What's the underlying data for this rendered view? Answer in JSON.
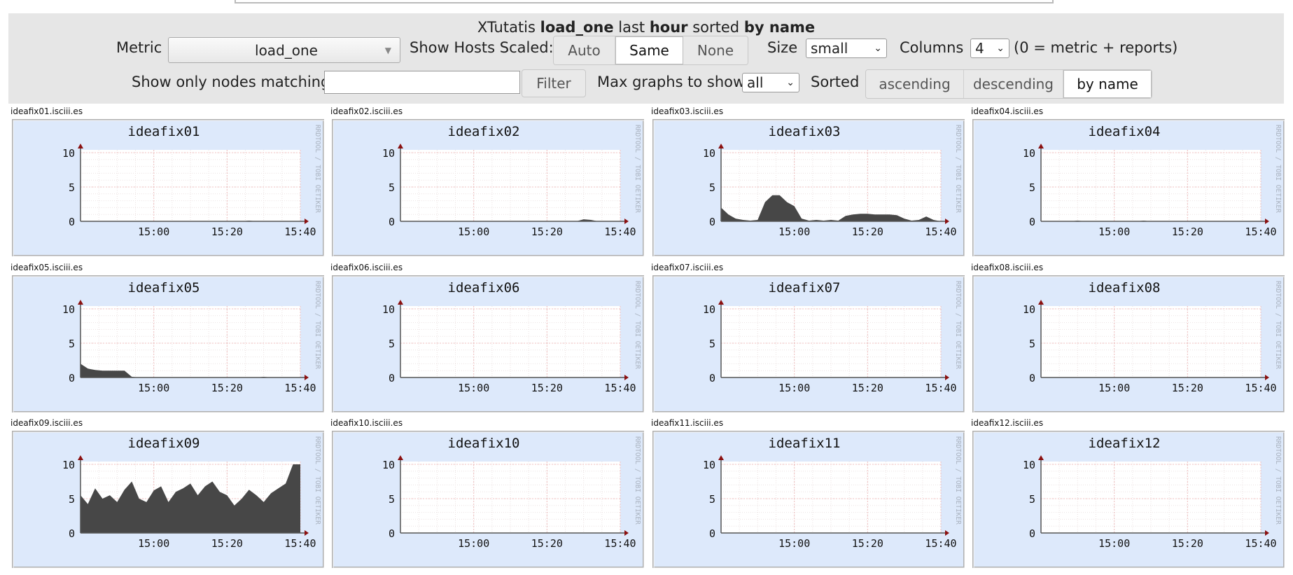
{
  "header": {
    "title_parts": {
      "cluster": "XTutatis",
      "metric": "load_one",
      "word_last": "last",
      "range": "hour",
      "word_sorted": "sorted",
      "sort": "by name"
    },
    "metric_label": "Metric",
    "metric_value": "load_one",
    "scaled_label": "Show Hosts Scaled:",
    "scaled_options": [
      "Auto",
      "Same",
      "None"
    ],
    "scaled_selected": "Same",
    "size_label": "Size",
    "size_value": "small",
    "columns_label": "Columns",
    "columns_value": "4",
    "columns_note": "(0 = metric + reports)",
    "filter_label": "Show only nodes matching",
    "filter_value": "",
    "filter_button": "Filter",
    "max_label": "Max graphs to show",
    "max_value": "all",
    "sorted_label": "Sorted",
    "sort_options": [
      "ascending",
      "descending",
      "by name"
    ],
    "sort_selected": "by name"
  },
  "graph_common": {
    "yticks": [
      "0",
      "5",
      "10"
    ],
    "xticks": [
      "15:00",
      "15:20",
      "15:40"
    ],
    "watermark": "RRDTOOL / TOBI OETIKER",
    "colors": {
      "bg": "#dde9fb",
      "plot": "#ffffff",
      "area": "#474747",
      "grid": "#f0c0c0",
      "axis": "#8b1010"
    }
  },
  "hosts": [
    {
      "fqdn": "ideafix01.isciii.es",
      "title": "ideafix01"
    },
    {
      "fqdn": "ideafix02.isciii.es",
      "title": "ideafix02"
    },
    {
      "fqdn": "ideafix03.isciii.es",
      "title": "ideafix03"
    },
    {
      "fqdn": "ideafix04.isciii.es",
      "title": "ideafix04"
    },
    {
      "fqdn": "ideafix05.isciii.es",
      "title": "ideafix05"
    },
    {
      "fqdn": "ideafix06.isciii.es",
      "title": "ideafix06"
    },
    {
      "fqdn": "ideafix07.isciii.es",
      "title": "ideafix07"
    },
    {
      "fqdn": "ideafix08.isciii.es",
      "title": "ideafix08"
    },
    {
      "fqdn": "ideafix09.isciii.es",
      "title": "ideafix09"
    },
    {
      "fqdn": "ideafix10.isciii.es",
      "title": "ideafix10"
    },
    {
      "fqdn": "ideafix11.isciii.es",
      "title": "ideafix11"
    },
    {
      "fqdn": "ideafix12.isciii.es",
      "title": "ideafix12"
    }
  ],
  "chart_data": {
    "type": "area",
    "xlabel": "",
    "ylabel": "",
    "ylim": [
      0,
      10
    ],
    "xlim_minutes": [
      -60,
      0
    ],
    "xticks": [
      "15:00",
      "15:20",
      "15:40"
    ],
    "yticks": [
      0,
      5,
      10
    ],
    "grid": true,
    "x_minutes": [
      0,
      2,
      4,
      6,
      8,
      10,
      12,
      14,
      16,
      18,
      20,
      22,
      24,
      26,
      28,
      30,
      32,
      34,
      36,
      38,
      40,
      42,
      44,
      46,
      48,
      50,
      52,
      54,
      56,
      58,
      60
    ],
    "series": [
      {
        "host": "ideafix01",
        "values": [
          0,
          0,
          0,
          0,
          0,
          0,
          0,
          0,
          0,
          0,
          0,
          0,
          0,
          0,
          0,
          0,
          0,
          0,
          0,
          0,
          0,
          0,
          0,
          0.1,
          0,
          0,
          0,
          0,
          0,
          0,
          0
        ]
      },
      {
        "host": "ideafix02",
        "values": [
          0,
          0,
          0,
          0,
          0,
          0,
          0,
          0,
          0,
          0,
          0,
          0,
          0,
          0,
          0,
          0,
          0,
          0,
          0,
          0,
          0,
          0,
          0,
          0,
          0,
          0.3,
          0.2,
          0,
          0,
          0,
          0
        ]
      },
      {
        "host": "ideafix03",
        "values": [
          2,
          1,
          0.4,
          0.2,
          0.1,
          0.2,
          2.8,
          3.8,
          3.8,
          2.8,
          2.2,
          0.4,
          0.1,
          0.2,
          0.1,
          0.2,
          0.1,
          0.8,
          1.0,
          1.1,
          1.1,
          1.0,
          1.0,
          1.0,
          0.9,
          0.4,
          0.1,
          0.2,
          0.7,
          0.2,
          0
        ]
      },
      {
        "host": "ideafix04",
        "values": [
          0,
          0,
          0,
          0,
          0,
          0.1,
          0,
          0,
          0,
          0,
          0,
          0,
          0,
          0,
          0.1,
          0,
          0,
          0,
          0,
          0,
          0,
          0,
          0,
          0,
          0,
          0,
          0,
          0,
          0,
          0,
          0
        ]
      },
      {
        "host": "ideafix05",
        "values": [
          2,
          1.3,
          1.1,
          1.0,
          1.0,
          1.0,
          1.0,
          0.1,
          0,
          0,
          0,
          0,
          0,
          0,
          0,
          0,
          0,
          0,
          0,
          0,
          0,
          0,
          0,
          0,
          0,
          0.1,
          0,
          0,
          0,
          0,
          0
        ]
      },
      {
        "host": "ideafix06",
        "values": [
          0,
          0,
          0,
          0,
          0,
          0,
          0,
          0,
          0,
          0,
          0,
          0,
          0,
          0,
          0,
          0,
          0,
          0,
          0,
          0,
          0,
          0,
          0,
          0,
          0,
          0,
          0,
          0,
          0,
          0,
          0
        ]
      },
      {
        "host": "ideafix07",
        "values": [
          0,
          0,
          0,
          0,
          0,
          0,
          0,
          0,
          0,
          0,
          0,
          0,
          0,
          0,
          0,
          0,
          0,
          0,
          0,
          0,
          0,
          0,
          0,
          0,
          0,
          0,
          0,
          0,
          0,
          0,
          0
        ]
      },
      {
        "host": "ideafix08",
        "values": [
          0,
          0,
          0,
          0,
          0,
          0,
          0,
          0,
          0,
          0,
          0,
          0,
          0,
          0,
          0,
          0,
          0,
          0,
          0,
          0,
          0,
          0,
          0,
          0,
          0,
          0,
          0,
          0,
          0,
          0,
          0
        ]
      },
      {
        "host": "ideafix09",
        "values": [
          5.5,
          4.2,
          6.5,
          5.0,
          5.5,
          4.5,
          6.3,
          7.5,
          5.0,
          4.5,
          6.2,
          6.8,
          4.5,
          6.0,
          6.5,
          7.2,
          5.5,
          6.8,
          7.5,
          6.0,
          5.5,
          4.0,
          5.0,
          6.3,
          5.5,
          4.5,
          5.8,
          6.5,
          7.2,
          10,
          10
        ]
      },
      {
        "host": "ideafix10",
        "values": [
          0,
          0,
          0,
          0,
          0,
          0,
          0,
          0,
          0,
          0,
          0,
          0,
          0,
          0,
          0,
          0,
          0,
          0,
          0,
          0,
          0,
          0,
          0,
          0,
          0,
          0,
          0,
          0,
          0,
          0,
          0
        ]
      },
      {
        "host": "ideafix11",
        "values": [
          0,
          0,
          0,
          0,
          0,
          0,
          0,
          0,
          0,
          0,
          0,
          0,
          0,
          0,
          0,
          0,
          0,
          0,
          0,
          0,
          0,
          0,
          0,
          0,
          0,
          0,
          0,
          0,
          0,
          0,
          0
        ]
      },
      {
        "host": "ideafix12",
        "values": [
          0,
          0,
          0,
          0,
          0,
          0,
          0,
          0,
          0,
          0,
          0,
          0,
          0,
          0,
          0,
          0,
          0,
          0,
          0,
          0,
          0,
          0,
          0,
          0,
          0,
          0,
          0,
          0,
          0,
          0,
          0
        ]
      }
    ]
  }
}
